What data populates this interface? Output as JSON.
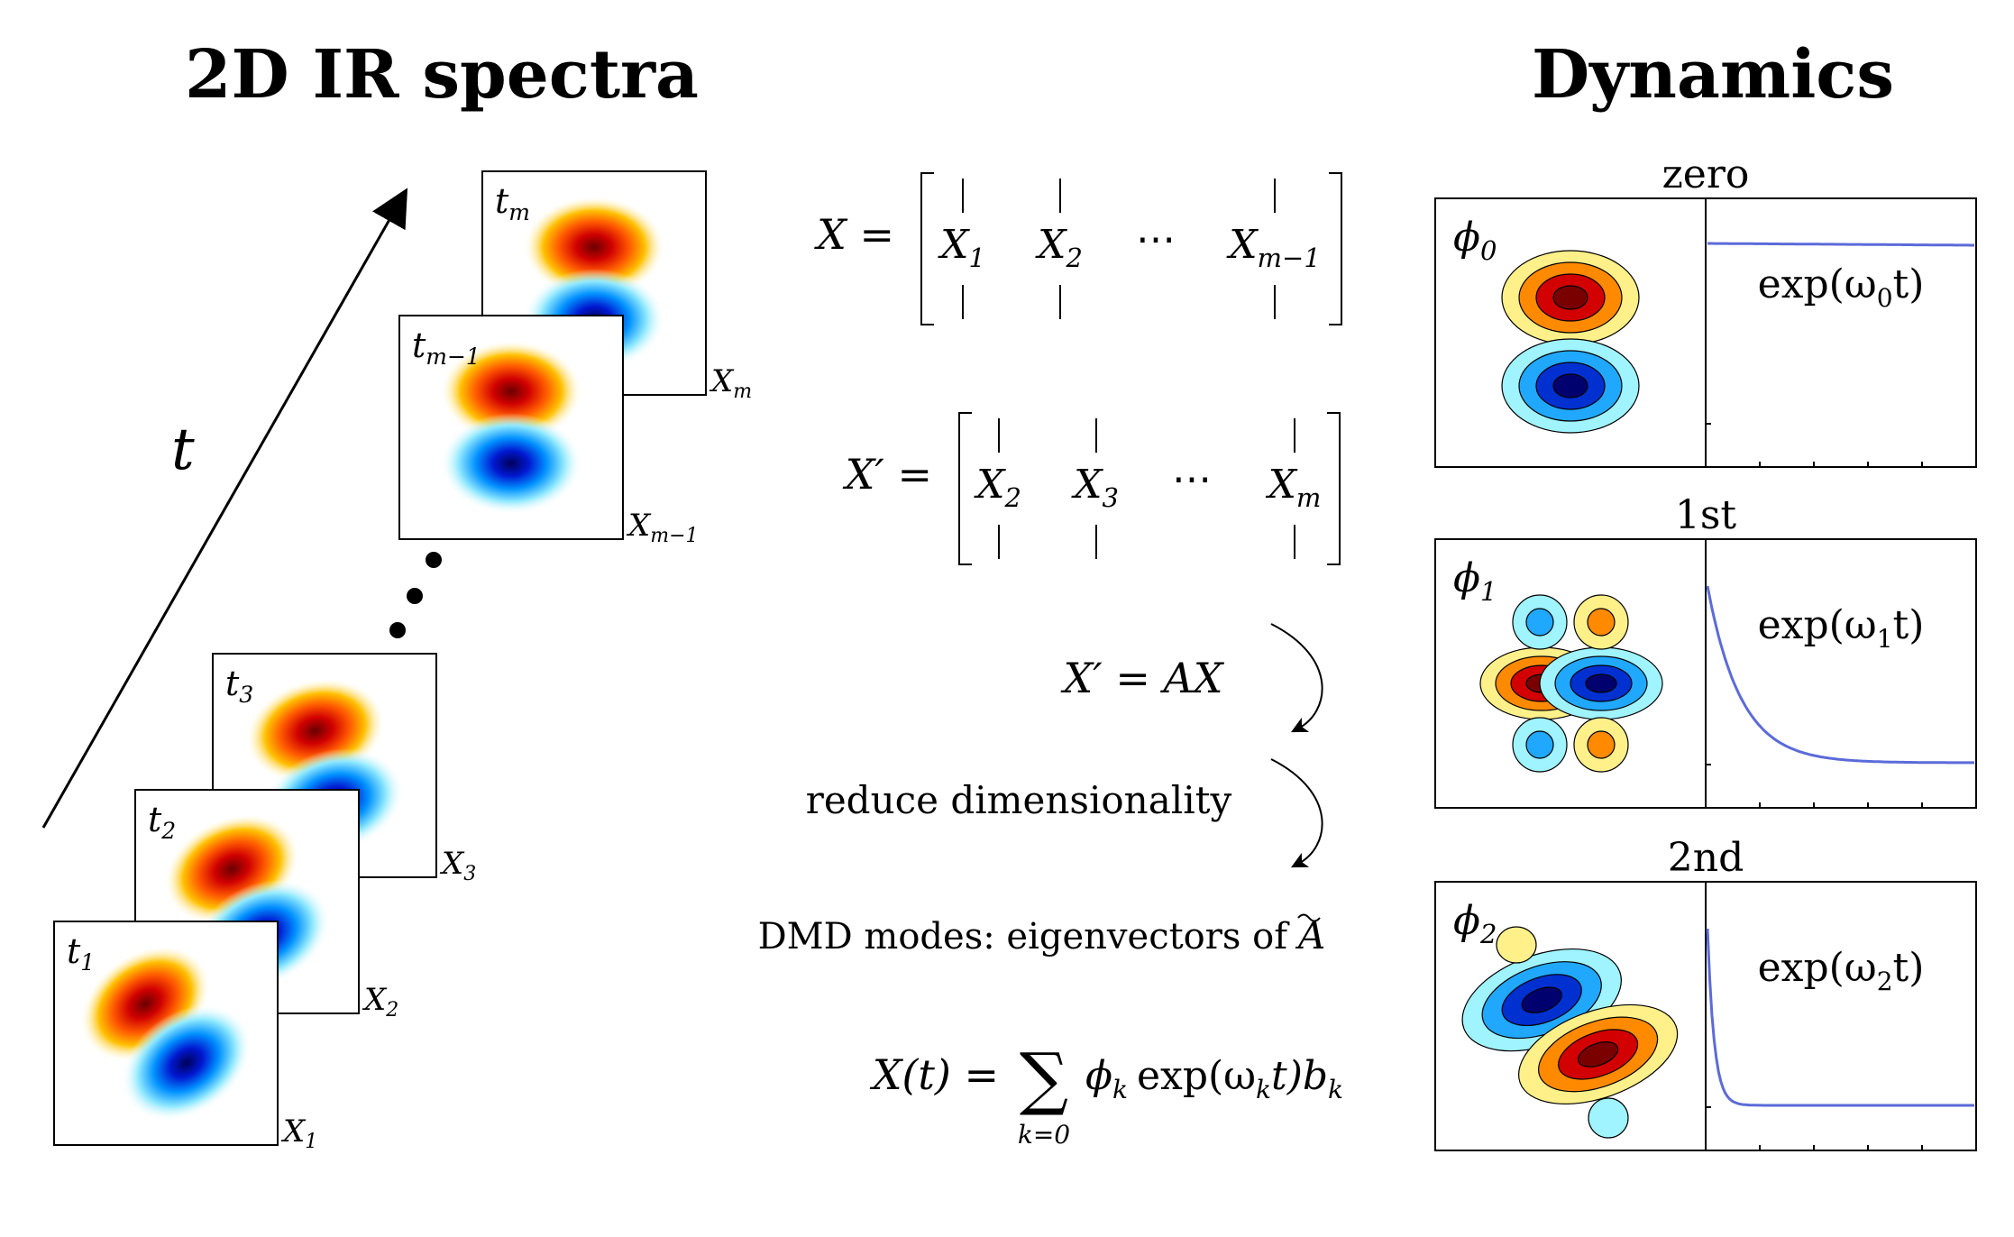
{
  "titles": {
    "left": "2D IR spectra",
    "right": "Dynamics"
  },
  "time_axis": {
    "label": "t"
  },
  "spectra_stack": [
    {
      "time_label": "t",
      "time_sub": "1",
      "matrix_label": "X",
      "matrix_sub": "1"
    },
    {
      "time_label": "t",
      "time_sub": "2",
      "matrix_label": "X",
      "matrix_sub": "2"
    },
    {
      "time_label": "t",
      "time_sub": "3",
      "matrix_label": "X",
      "matrix_sub": "3"
    },
    {
      "time_label": "t",
      "time_sub": "m−1",
      "matrix_label": "X",
      "matrix_sub": "m−1"
    },
    {
      "time_label": "t",
      "time_sub": "m",
      "matrix_label": "X",
      "matrix_sub": "m"
    }
  ],
  "equations": {
    "x_matrix": {
      "lhs": "X =",
      "cols": [
        {
          "name": "X",
          "sub": "1"
        },
        {
          "name": "X",
          "sub": "2"
        },
        {
          "name": "⋯",
          "sub": ""
        },
        {
          "name": "X",
          "sub": "m−1"
        }
      ]
    },
    "x_prime_matrix": {
      "lhs": "X′ =",
      "cols": [
        {
          "name": "X",
          "sub": "2"
        },
        {
          "name": "X",
          "sub": "3"
        },
        {
          "name": "⋯",
          "sub": ""
        },
        {
          "name": "X",
          "sub": "m"
        }
      ]
    },
    "linear_map": "X′ = AX",
    "reduce": "reduce dimensionality",
    "dmd_modes_prefix": "DMD modes: eigenvectors of",
    "dmd_modes_symbol": "A",
    "reconstruction": {
      "lhs": "X(t) =",
      "sum": "∑",
      "sum_index": "k=0",
      "term_phi": "ϕ",
      "term_phi_sub": "k",
      "term_exp": "exp(ω",
      "term_exp_sub": "k",
      "term_exp_tail": "t)b",
      "term_b_sub": "k"
    }
  },
  "modes": [
    {
      "order": "zero",
      "phi": "ϕ",
      "phi_sub": "0",
      "exp": "exp(ω",
      "exp_sub": "0",
      "exp_tail": "t)",
      "decay_rate": 0.0
    },
    {
      "order": "1st",
      "phi": "ϕ",
      "phi_sub": "1",
      "exp": "exp(ω",
      "exp_sub": "1",
      "exp_tail": "t)",
      "decay_rate": 8.0
    },
    {
      "order": "2nd",
      "phi": "ϕ",
      "phi_sub": "2",
      "exp": "exp(ω",
      "exp_sub": "2",
      "exp_tail": "t)",
      "decay_rate": 40.0
    }
  ],
  "colors": {
    "red_dark": "#7a0000",
    "red": "#d20000",
    "orange": "#ff8a00",
    "yellow": "#fff08a",
    "blue_dark": "#00006e",
    "blue": "#0030d0",
    "cyan": "#20a8ff",
    "light_cyan": "#9ff4ff",
    "curve": "#5b6bd9"
  }
}
